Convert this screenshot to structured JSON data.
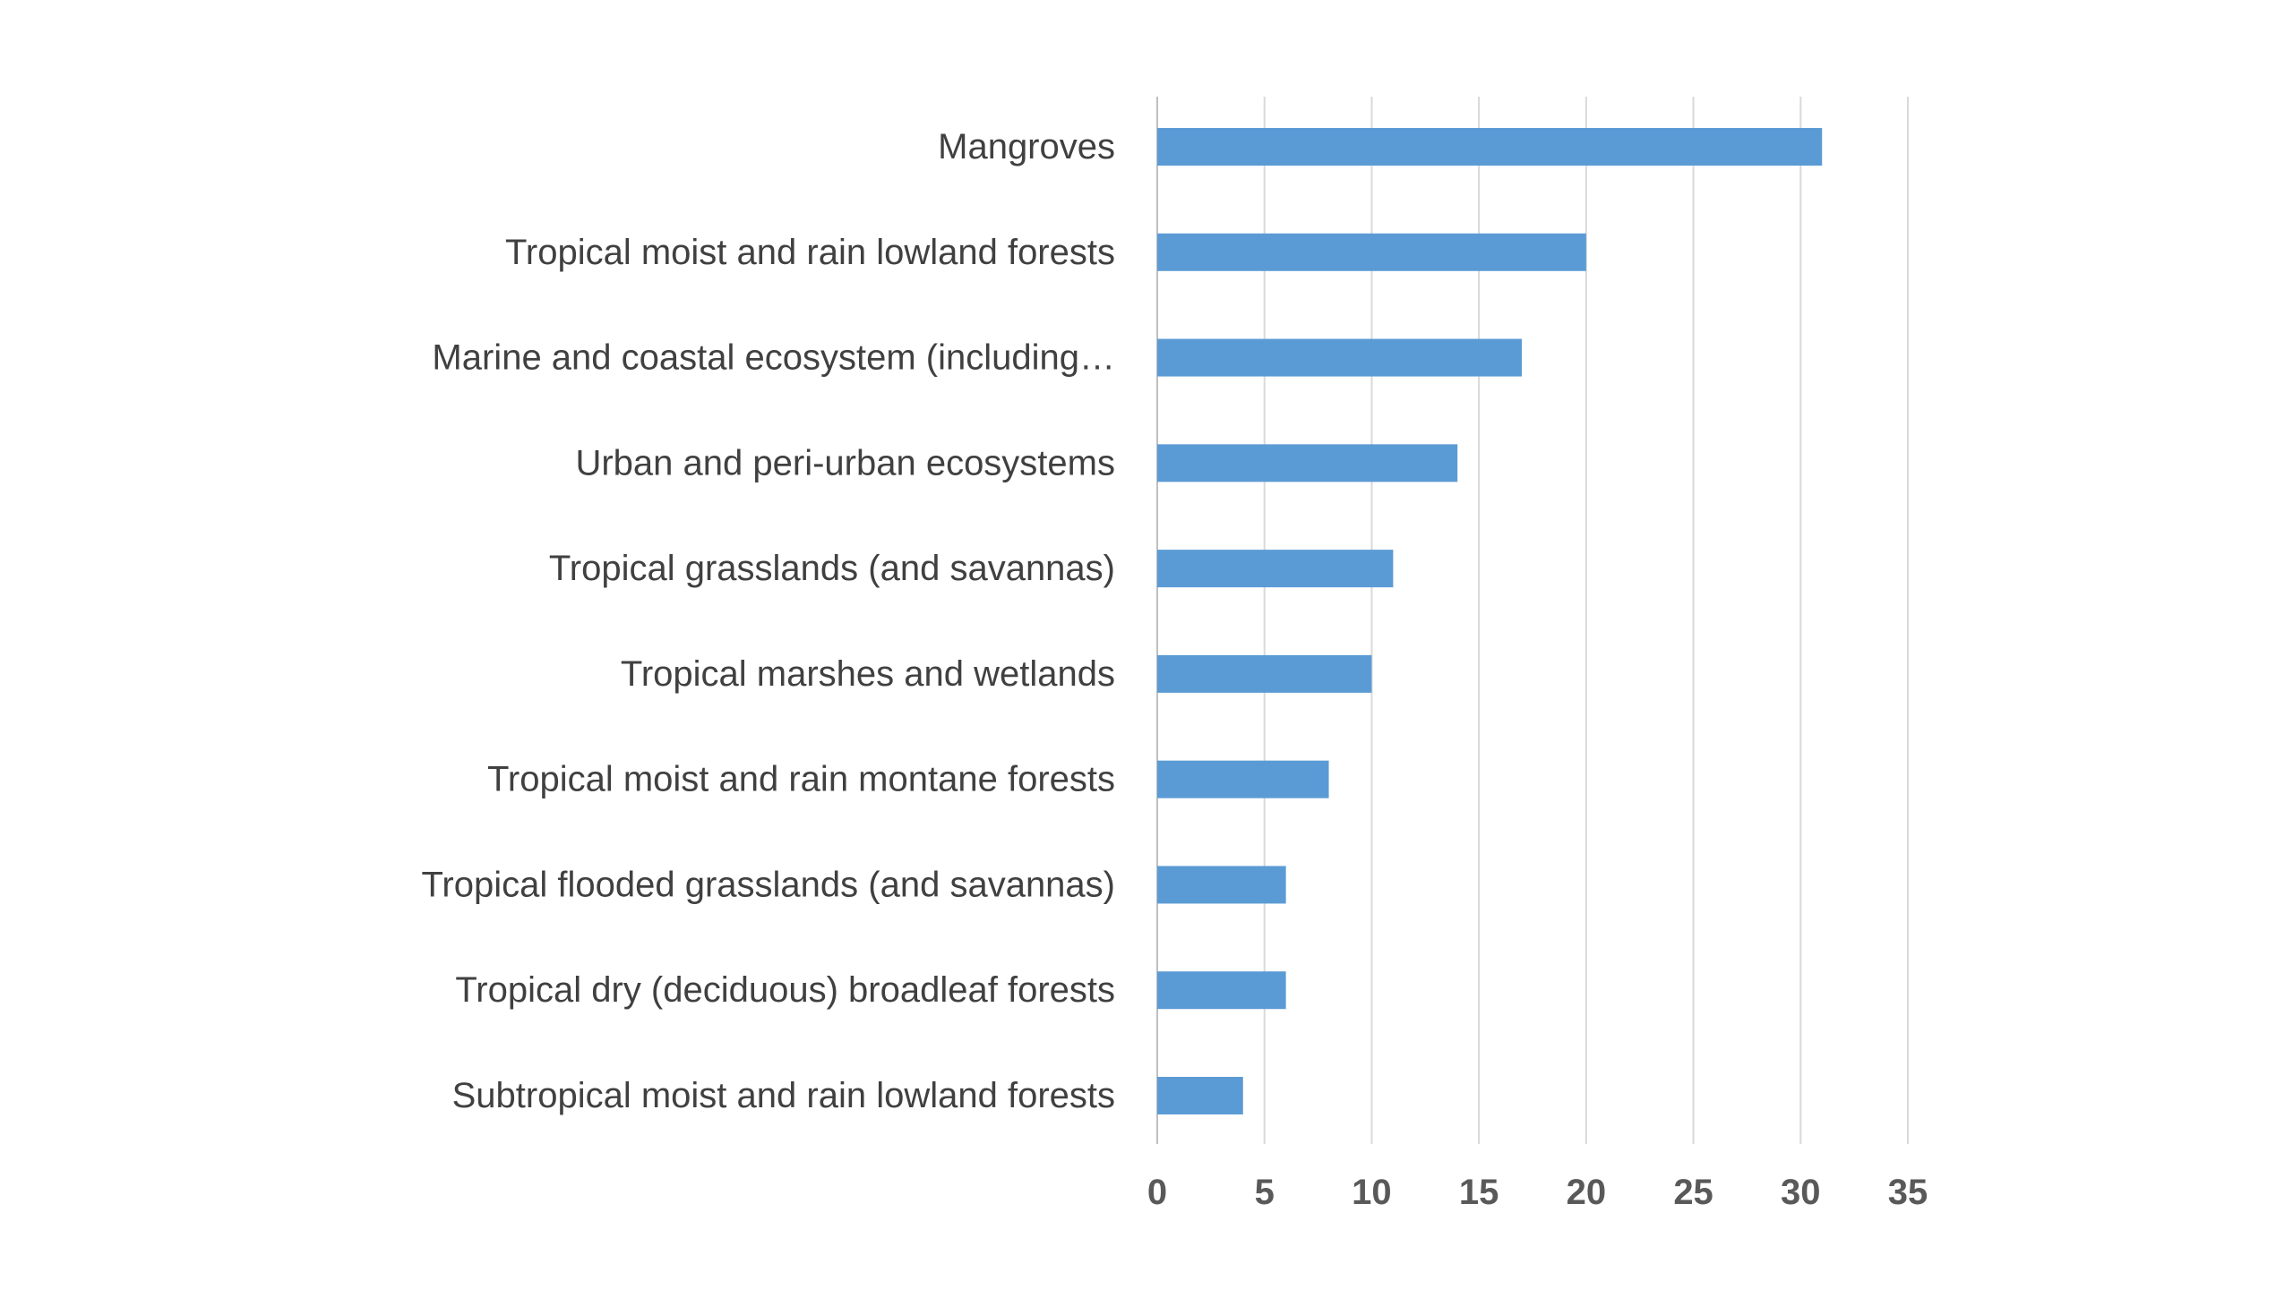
{
  "chart_data": {
    "type": "bar",
    "orientation": "horizontal",
    "title": "",
    "xlabel": "",
    "ylabel": "",
    "categories": [
      "Mangroves",
      "Tropical moist and rain lowland forests",
      "Marine and coastal ecosystem (including…",
      "Urban and peri-urban ecosystems",
      "Tropical grasslands (and savannas)",
      "Tropical marshes and wetlands",
      "Tropical moist and rain montane forests",
      "Tropical flooded grasslands (and savannas)",
      "Tropical dry (deciduous) broadleaf forests",
      "Subtropical moist and rain lowland forests"
    ],
    "values": [
      31,
      20,
      17,
      14,
      11,
      10,
      8,
      6,
      6,
      4
    ],
    "xlim": [
      0,
      35
    ],
    "xticks": [
      0,
      5,
      10,
      15,
      20,
      25,
      30,
      35
    ],
    "grid": true,
    "legend": "none",
    "bar_color": "#5b9bd5"
  }
}
